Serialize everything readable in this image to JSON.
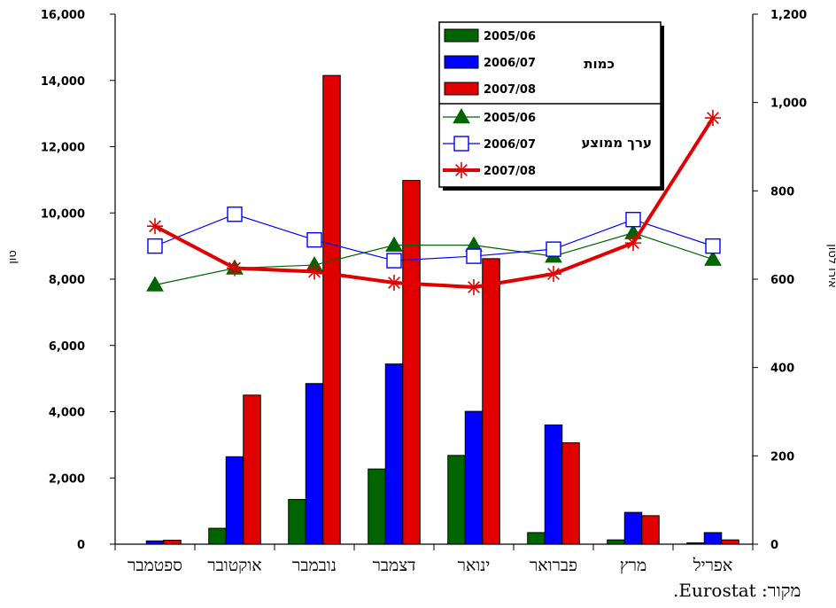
{
  "chart_data": {
    "type": "bar",
    "title": "",
    "categories": [
      "ספטמבר",
      "אוקטובר",
      "נובמבר",
      "דצמבר",
      "ינואר",
      "פברואר",
      "מרץ",
      "אפריל"
    ],
    "ylabel_left": "טון",
    "ylabel_right": "אירו לטון",
    "ylim_left": [
      0,
      16000
    ],
    "ylim_right": [
      0,
      1200
    ],
    "yticks_left": [
      "0",
      "2,000",
      "4,000",
      "6,000",
      "8,000",
      "10,000",
      "12,000",
      "14,000",
      "16,000"
    ],
    "yticks_right": [
      "0",
      "200",
      "400",
      "600",
      "800",
      "1,000",
      "1,200"
    ],
    "legend_group_bars": "כמות",
    "legend_group_lines": "ערך ממוצע",
    "bar_series": [
      {
        "name": "2005/06",
        "color": "#006400",
        "values": [
          0,
          480,
          1350,
          2270,
          2680,
          350,
          130,
          40
        ]
      },
      {
        "name": "2006/07",
        "color": "#0000ff",
        "values": [
          100,
          2640,
          4850,
          5440,
          4010,
          3600,
          960,
          350
        ]
      },
      {
        "name": "2007/08",
        "color": "#e00000",
        "values": [
          120,
          4500,
          14150,
          10980,
          8620,
          3060,
          860,
          130
        ]
      }
    ],
    "line_series": [
      {
        "name": "2005/06",
        "color": "#006400",
        "marker": "triangle",
        "values": [
          587,
          625,
          632,
          677,
          677,
          652,
          705,
          645
        ]
      },
      {
        "name": "2006/07",
        "color": "#0000ff",
        "marker": "square",
        "values": [
          675,
          747,
          689,
          642,
          652,
          668,
          735,
          675
        ]
      },
      {
        "name": "2007/08",
        "color": "#e00000",
        "marker": "star",
        "values": [
          720,
          625,
          617,
          592,
          582,
          612,
          682,
          965
        ]
      }
    ]
  },
  "footer": {
    "source": "מקור: Eurostat."
  }
}
